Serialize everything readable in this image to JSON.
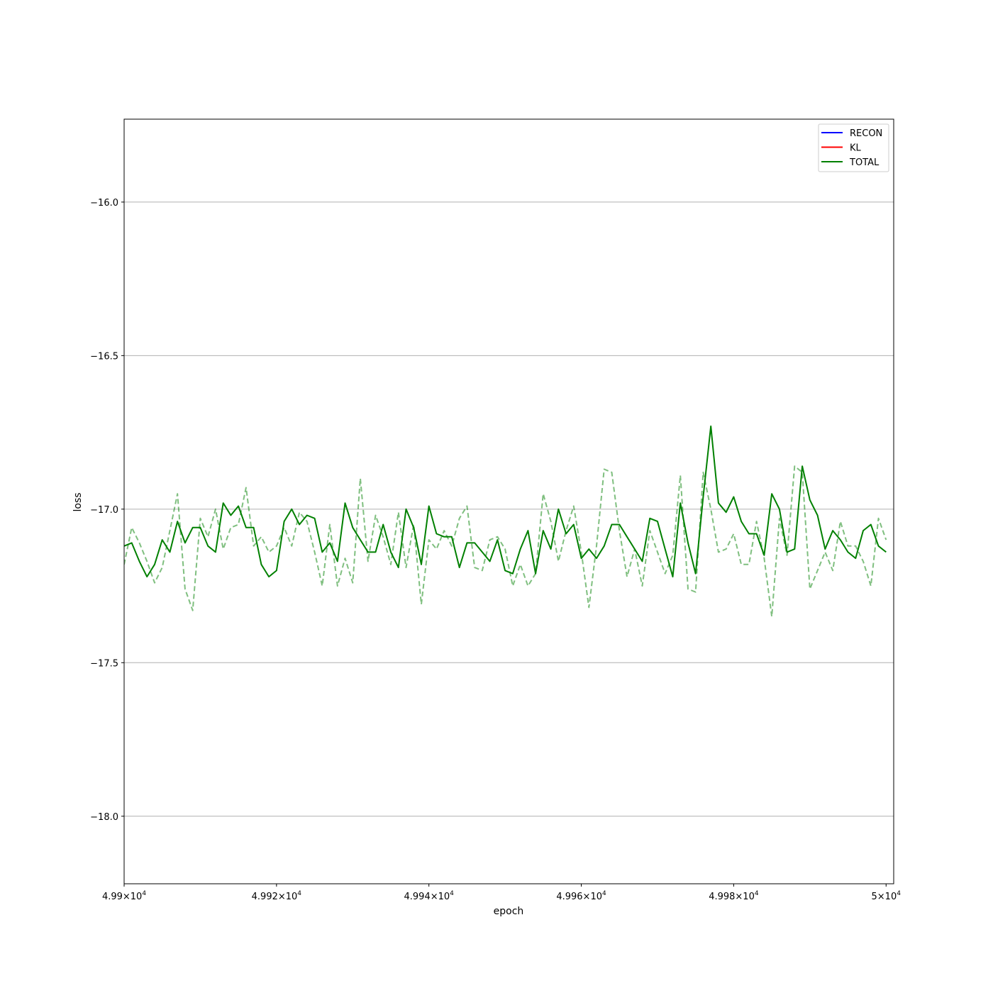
{
  "chart_data": {
    "type": "line",
    "xlabel": "epoch",
    "ylabel": "loss",
    "xlim": [
      49900,
      50001
    ],
    "ylim": [
      -18.22,
      -15.73
    ],
    "x_ticks": [
      {
        "value": 49900,
        "mantissa": "4.99",
        "exp": "4"
      },
      {
        "value": 49920,
        "mantissa": "4.992",
        "exp": "4"
      },
      {
        "value": 49940,
        "mantissa": "4.994",
        "exp": "4"
      },
      {
        "value": 49960,
        "mantissa": "4.996",
        "exp": "4"
      },
      {
        "value": 49980,
        "mantissa": "4.998",
        "exp": "4"
      },
      {
        "value": 50000,
        "mantissa": "5",
        "exp": "4"
      }
    ],
    "y_ticks": [
      {
        "value": -16.0,
        "label": "−16.0"
      },
      {
        "value": -16.5,
        "label": "−16.5"
      },
      {
        "value": -17.0,
        "label": "−17.0"
      },
      {
        "value": -17.5,
        "label": "−17.5"
      },
      {
        "value": -18.0,
        "label": "−18.0"
      }
    ],
    "grid": "horizontal",
    "legend_position": "top-right",
    "x_start": 49900,
    "x_step": 1,
    "series": [
      {
        "name": "RECON",
        "color": "#0000ff",
        "style": "solid",
        "values": []
      },
      {
        "name": "KL",
        "color": "#ff0000",
        "style": "solid",
        "values": []
      },
      {
        "name": "TOTAL",
        "color": "#008000",
        "style": "solid",
        "values": [
          -17.12,
          -17.11,
          -17.17,
          -17.22,
          -17.18,
          -17.1,
          -17.14,
          -17.04,
          -17.11,
          -17.06,
          -17.06,
          -17.12,
          -17.14,
          -16.98,
          -17.02,
          -16.99,
          -17.06,
          -17.06,
          -17.18,
          -17.22,
          -17.2,
          -17.04,
          -17.0,
          -17.05,
          -17.02,
          -17.03,
          -17.14,
          -17.11,
          -17.17,
          -16.98,
          -17.06,
          -17.1,
          -17.14,
          -17.14,
          -17.05,
          -17.14,
          -17.19,
          -17.0,
          -17.06,
          -17.18,
          -16.99,
          -17.08,
          -17.09,
          -17.09,
          -17.19,
          -17.11,
          -17.11,
          -17.14,
          -17.17,
          -17.1,
          -17.2,
          -17.21,
          -17.13,
          -17.07,
          -17.21,
          -17.07,
          -17.13,
          -17.0,
          -17.08,
          -17.05,
          -17.16,
          -17.13,
          -17.16,
          -17.12,
          -17.05,
          -17.05,
          -17.09,
          -17.13,
          -17.17,
          -17.03,
          -17.04,
          -17.13,
          -17.22,
          -16.98,
          -17.11,
          -17.21,
          -16.96,
          -16.73,
          -16.98,
          -17.01,
          -16.96,
          -17.04,
          -17.08,
          -17.08,
          -17.15,
          -16.95,
          -17.0,
          -17.14,
          -17.13,
          -16.86,
          -16.97,
          -17.02,
          -17.13,
          -17.07,
          -17.1,
          -17.14,
          -17.16,
          -17.07,
          -17.05,
          -17.12,
          -17.14
        ]
      },
      {
        "name": "",
        "color": "#008000",
        "style": "dashed",
        "opacity": 0.5,
        "values": [
          -17.18,
          -17.06,
          -17.11,
          -17.17,
          -17.24,
          -17.19,
          -17.07,
          -16.95,
          -17.26,
          -17.33,
          -17.03,
          -17.09,
          -17.0,
          -17.13,
          -17.06,
          -17.05,
          -16.93,
          -17.12,
          -17.09,
          -17.14,
          -17.12,
          -17.06,
          -17.12,
          -17.01,
          -17.04,
          -17.14,
          -17.25,
          -17.05,
          -17.25,
          -17.16,
          -17.24,
          -16.9,
          -17.17,
          -17.02,
          -17.09,
          -17.18,
          -17.01,
          -17.19,
          -17.05,
          -17.31,
          -17.1,
          -17.13,
          -17.07,
          -17.12,
          -17.03,
          -16.99,
          -17.19,
          -17.2,
          -17.1,
          -17.09,
          -17.13,
          -17.25,
          -17.18,
          -17.25,
          -17.21,
          -16.95,
          -17.04,
          -17.17,
          -17.07,
          -16.99,
          -17.14,
          -17.32,
          -17.12,
          -16.87,
          -16.88,
          -17.07,
          -17.22,
          -17.13,
          -17.25,
          -17.07,
          -17.14,
          -17.21,
          -17.15,
          -16.89,
          -17.26,
          -17.27,
          -16.88,
          -17.0,
          -17.14,
          -17.13,
          -17.08,
          -17.18,
          -17.18,
          -17.04,
          -17.16,
          -17.35,
          -17.03,
          -17.15,
          -16.86,
          -16.88,
          -17.26,
          -17.2,
          -17.14,
          -17.2,
          -17.04,
          -17.12,
          -17.12,
          -17.17,
          -17.25,
          -17.03,
          -17.1
        ]
      }
    ]
  }
}
